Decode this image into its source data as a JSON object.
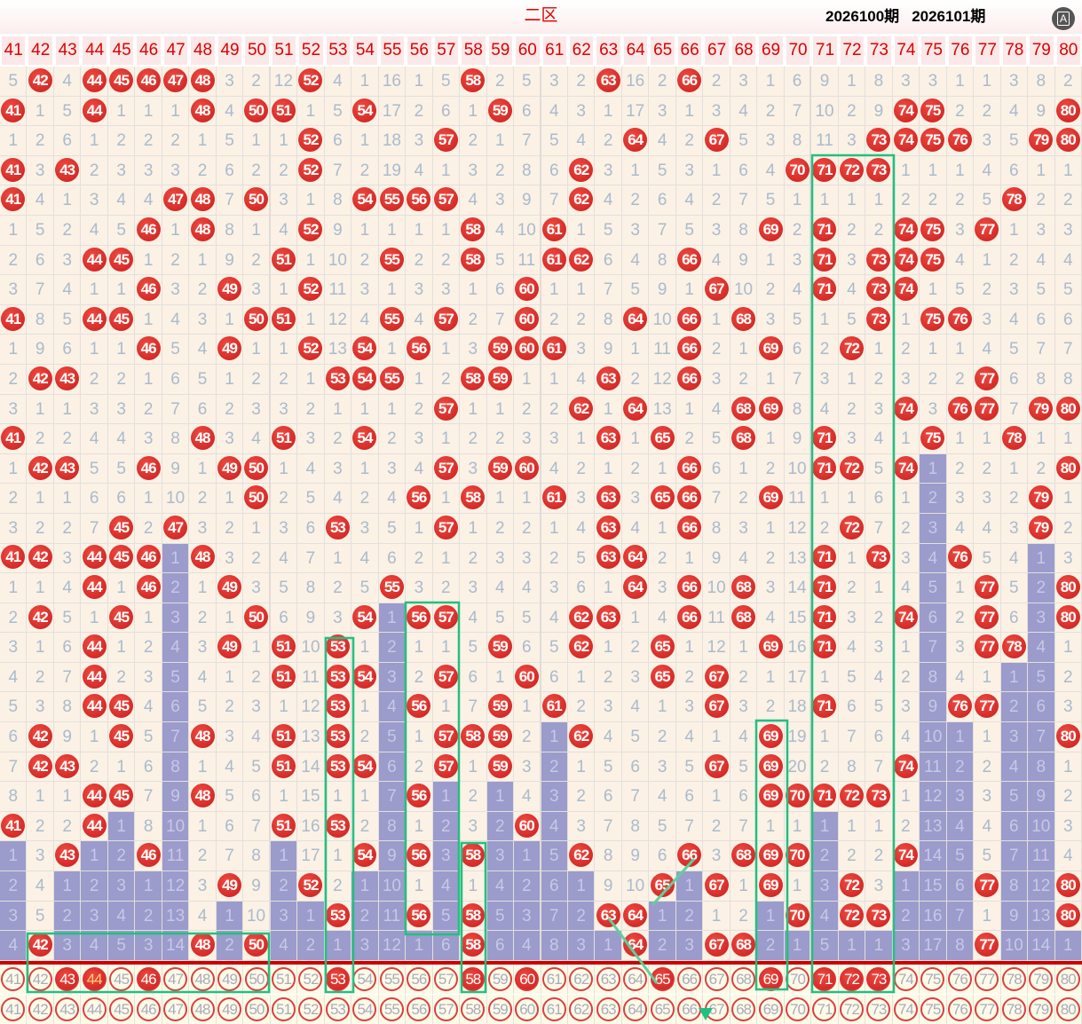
{
  "title": "二区",
  "translate_icon": "translate-icon",
  "translate_glyph": "A",
  "columns": [
    41,
    42,
    43,
    44,
    45,
    46,
    47,
    48,
    49,
    50,
    51,
    52,
    53,
    54,
    55,
    56,
    57,
    58,
    59,
    60,
    61,
    62,
    63,
    64,
    65,
    66,
    67,
    68,
    69,
    70,
    71,
    72,
    73,
    74,
    75,
    76,
    77,
    78,
    79,
    80
  ],
  "rows": [
    [
      5,
      42,
      4,
      44,
      45,
      46,
      47,
      48,
      3,
      2,
      12,
      52,
      4,
      1,
      16,
      1,
      5,
      58,
      2,
      5,
      3,
      2,
      63,
      16,
      2,
      66,
      2,
      3,
      1,
      6,
      9,
      1,
      8,
      3,
      3,
      1,
      1,
      3,
      8,
      2
    ],
    [
      41,
      1,
      5,
      44,
      1,
      1,
      1,
      48,
      4,
      50,
      51,
      1,
      5,
      54,
      17,
      2,
      6,
      1,
      59,
      6,
      4,
      3,
      1,
      17,
      3,
      1,
      3,
      4,
      2,
      7,
      10,
      2,
      9,
      74,
      75,
      2,
      2,
      4,
      9,
      80
    ],
    [
      1,
      2,
      6,
      1,
      2,
      2,
      2,
      1,
      5,
      1,
      1,
      52,
      6,
      1,
      18,
      3,
      57,
      2,
      1,
      7,
      5,
      4,
      2,
      64,
      4,
      2,
      67,
      5,
      3,
      8,
      11,
      3,
      73,
      74,
      75,
      76,
      3,
      5,
      79,
      80
    ],
    [
      41,
      3,
      43,
      2,
      3,
      3,
      3,
      2,
      6,
      2,
      2,
      52,
      7,
      2,
      19,
      4,
      1,
      3,
      2,
      8,
      6,
      62,
      3,
      1,
      5,
      3,
      1,
      6,
      4,
      70,
      71,
      72,
      73,
      1,
      1,
      1,
      4,
      6,
      1,
      1
    ],
    [
      41,
      4,
      1,
      3,
      4,
      4,
      47,
      48,
      7,
      50,
      3,
      1,
      8,
      54,
      55,
      56,
      57,
      4,
      3,
      9,
      7,
      62,
      4,
      2,
      6,
      4,
      2,
      7,
      5,
      1,
      1,
      1,
      1,
      2,
      2,
      2,
      5,
      78,
      2,
      2
    ],
    [
      1,
      5,
      2,
      4,
      5,
      46,
      1,
      48,
      8,
      1,
      4,
      52,
      9,
      1,
      1,
      1,
      1,
      58,
      4,
      10,
      61,
      1,
      5,
      3,
      7,
      5,
      3,
      8,
      69,
      2,
      71,
      2,
      2,
      74,
      75,
      3,
      77,
      1,
      3,
      3
    ],
    [
      2,
      6,
      3,
      44,
      45,
      1,
      2,
      1,
      9,
      2,
      51,
      1,
      10,
      2,
      55,
      2,
      2,
      58,
      5,
      11,
      61,
      62,
      6,
      4,
      8,
      66,
      4,
      9,
      1,
      3,
      71,
      3,
      73,
      74,
      75,
      4,
      1,
      2,
      4,
      4
    ],
    [
      3,
      7,
      4,
      1,
      1,
      46,
      3,
      2,
      49,
      3,
      1,
      52,
      11,
      3,
      1,
      3,
      3,
      1,
      6,
      60,
      1,
      1,
      7,
      5,
      9,
      1,
      67,
      10,
      2,
      4,
      71,
      4,
      73,
      74,
      1,
      5,
      2,
      3,
      5,
      5
    ],
    [
      41,
      8,
      5,
      44,
      45,
      1,
      4,
      3,
      1,
      50,
      51,
      1,
      12,
      4,
      55,
      4,
      57,
      2,
      7,
      60,
      2,
      2,
      8,
      64,
      10,
      66,
      1,
      68,
      3,
      5,
      1,
      5,
      73,
      1,
      75,
      76,
      3,
      4,
      6,
      6
    ],
    [
      1,
      9,
      6,
      1,
      1,
      46,
      5,
      4,
      49,
      1,
      1,
      52,
      13,
      54,
      1,
      56,
      1,
      3,
      59,
      60,
      61,
      3,
      9,
      1,
      11,
      66,
      2,
      1,
      69,
      6,
      2,
      72,
      1,
      2,
      1,
      1,
      4,
      5,
      7,
      7
    ],
    [
      2,
      42,
      43,
      2,
      2,
      1,
      6,
      5,
      1,
      2,
      2,
      1,
      53,
      54,
      55,
      1,
      2,
      58,
      59,
      1,
      1,
      4,
      63,
      2,
      12,
      66,
      3,
      2,
      1,
      7,
      3,
      1,
      2,
      3,
      2,
      2,
      77,
      6,
      8,
      8
    ],
    [
      3,
      1,
      1,
      3,
      3,
      2,
      7,
      6,
      2,
      3,
      3,
      2,
      1,
      1,
      1,
      2,
      57,
      1,
      1,
      2,
      2,
      62,
      1,
      64,
      13,
      1,
      4,
      68,
      69,
      8,
      4,
      2,
      3,
      74,
      3,
      76,
      77,
      7,
      79,
      80
    ],
    [
      41,
      2,
      2,
      4,
      4,
      3,
      8,
      48,
      3,
      4,
      51,
      3,
      2,
      54,
      2,
      3,
      1,
      2,
      2,
      3,
      3,
      1,
      63,
      1,
      65,
      2,
      5,
      68,
      1,
      9,
      71,
      3,
      4,
      1,
      75,
      1,
      1,
      78,
      1,
      1
    ],
    [
      1,
      42,
      43,
      5,
      5,
      46,
      9,
      1,
      49,
      50,
      1,
      4,
      3,
      1,
      3,
      4,
      57,
      3,
      59,
      60,
      4,
      2,
      1,
      2,
      1,
      66,
      6,
      1,
      2,
      10,
      71,
      72,
      5,
      74,
      1,
      2,
      2,
      1,
      2,
      80
    ],
    [
      2,
      1,
      1,
      6,
      6,
      1,
      10,
      2,
      1,
      50,
      2,
      5,
      4,
      2,
      4,
      56,
      1,
      58,
      1,
      1,
      61,
      3,
      63,
      3,
      65,
      66,
      7,
      2,
      69,
      11,
      1,
      1,
      6,
      1,
      2,
      3,
      3,
      2,
      79,
      1
    ],
    [
      3,
      2,
      2,
      7,
      45,
      2,
      47,
      3,
      2,
      1,
      3,
      6,
      53,
      3,
      5,
      1,
      57,
      1,
      2,
      2,
      1,
      4,
      63,
      4,
      1,
      66,
      8,
      3,
      1,
      12,
      2,
      72,
      7,
      2,
      3,
      4,
      4,
      3,
      79,
      2
    ],
    [
      41,
      42,
      3,
      44,
      45,
      46,
      1,
      48,
      3,
      2,
      4,
      7,
      1,
      4,
      6,
      2,
      1,
      2,
      3,
      3,
      2,
      5,
      63,
      64,
      2,
      1,
      9,
      4,
      2,
      13,
      71,
      1,
      73,
      3,
      4,
      76,
      5,
      4,
      1,
      3
    ],
    [
      1,
      1,
      4,
      44,
      1,
      46,
      2,
      1,
      49,
      3,
      5,
      8,
      2,
      5,
      55,
      3,
      2,
      3,
      4,
      4,
      3,
      6,
      1,
      64,
      3,
      66,
      10,
      68,
      3,
      14,
      71,
      2,
      1,
      4,
      5,
      1,
      77,
      5,
      2,
      80
    ],
    [
      2,
      42,
      5,
      1,
      45,
      1,
      3,
      2,
      1,
      50,
      6,
      9,
      3,
      54,
      1,
      56,
      57,
      4,
      5,
      5,
      4,
      62,
      63,
      1,
      4,
      66,
      11,
      68,
      4,
      15,
      71,
      3,
      2,
      74,
      6,
      2,
      77,
      6,
      3,
      80
    ],
    [
      3,
      1,
      6,
      44,
      1,
      2,
      4,
      3,
      49,
      1,
      51,
      10,
      53,
      1,
      2,
      1,
      1,
      5,
      59,
      6,
      5,
      62,
      1,
      2,
      65,
      1,
      12,
      1,
      69,
      16,
      71,
      4,
      3,
      1,
      7,
      3,
      77,
      78,
      4,
      1
    ],
    [
      4,
      2,
      7,
      44,
      2,
      3,
      5,
      4,
      1,
      2,
      51,
      11,
      53,
      54,
      3,
      2,
      57,
      6,
      1,
      60,
      6,
      1,
      2,
      3,
      65,
      2,
      67,
      2,
      1,
      17,
      1,
      5,
      4,
      2,
      8,
      4,
      1,
      1,
      5,
      2
    ],
    [
      5,
      3,
      8,
      44,
      45,
      4,
      6,
      5,
      2,
      3,
      1,
      12,
      53,
      1,
      4,
      56,
      1,
      7,
      59,
      1,
      61,
      2,
      3,
      4,
      1,
      3,
      67,
      3,
      2,
      18,
      71,
      6,
      5,
      3,
      9,
      76,
      77,
      2,
      6,
      3
    ],
    [
      6,
      42,
      9,
      1,
      45,
      5,
      7,
      48,
      3,
      4,
      51,
      13,
      53,
      2,
      5,
      1,
      57,
      58,
      59,
      2,
      1,
      62,
      4,
      5,
      2,
      4,
      1,
      4,
      69,
      19,
      1,
      7,
      6,
      4,
      10,
      1,
      1,
      3,
      7,
      80
    ],
    [
      7,
      42,
      43,
      2,
      1,
      6,
      8,
      1,
      4,
      5,
      51,
      14,
      53,
      54,
      6,
      2,
      57,
      1,
      59,
      3,
      2,
      1,
      5,
      6,
      3,
      5,
      67,
      5,
      69,
      20,
      2,
      8,
      7,
      74,
      11,
      2,
      2,
      4,
      8,
      1
    ],
    [
      8,
      1,
      1,
      44,
      45,
      7,
      9,
      48,
      5,
      6,
      1,
      15,
      1,
      1,
      7,
      56,
      1,
      2,
      1,
      4,
      3,
      2,
      6,
      7,
      4,
      6,
      1,
      6,
      69,
      70,
      71,
      72,
      73,
      1,
      12,
      3,
      3,
      5,
      9,
      2
    ],
    [
      41,
      2,
      2,
      44,
      1,
      8,
      10,
      1,
      6,
      7,
      51,
      16,
      53,
      2,
      8,
      1,
      2,
      3,
      2,
      60,
      4,
      3,
      7,
      8,
      5,
      7,
      2,
      7,
      1,
      1,
      1,
      1,
      1,
      2,
      13,
      4,
      4,
      6,
      10,
      3
    ],
    [
      1,
      3,
      43,
      1,
      2,
      46,
      11,
      2,
      7,
      8,
      1,
      17,
      1,
      54,
      9,
      56,
      3,
      58,
      3,
      1,
      5,
      62,
      8,
      9,
      6,
      66,
      3,
      68,
      69,
      70,
      2,
      2,
      2,
      74,
      14,
      5,
      5,
      7,
      11,
      4
    ],
    [
      2,
      4,
      1,
      2,
      3,
      1,
      12,
      3,
      49,
      9,
      2,
      52,
      2,
      1,
      10,
      1,
      4,
      1,
      4,
      2,
      6,
      1,
      9,
      10,
      65,
      1,
      67,
      1,
      69,
      1,
      3,
      72,
      3,
      1,
      15,
      6,
      77,
      8,
      12,
      80
    ],
    [
      3,
      5,
      2,
      3,
      4,
      2,
      13,
      4,
      1,
      10,
      3,
      1,
      53,
      2,
      11,
      56,
      5,
      58,
      5,
      3,
      7,
      2,
      63,
      64,
      1,
      2,
      1,
      2,
      1,
      70,
      4,
      72,
      73,
      2,
      16,
      7,
      1,
      9,
      13,
      80
    ],
    [
      4,
      42,
      3,
      4,
      5,
      3,
      14,
      48,
      2,
      50,
      4,
      2,
      1,
      3,
      12,
      1,
      6,
      58,
      6,
      4,
      8,
      3,
      1,
      64,
      2,
      3,
      67,
      68,
      2,
      1,
      5,
      1,
      1,
      3,
      17,
      8,
      77,
      10,
      14,
      1
    ]
  ],
  "current_draw": {
    "numbers": [
      43,
      44,
      46,
      53,
      58,
      60,
      65,
      69,
      71,
      72,
      73
    ],
    "repeat": [
      44
    ]
  },
  "labels": {
    "prev_issue": "2026100期",
    "curr_issue": "2026101期"
  },
  "colors": {
    "ball": "#d9302c",
    "omission_bar": "#9b9bcc",
    "annotation": "#22c080",
    "header_text": "#dd0000"
  }
}
